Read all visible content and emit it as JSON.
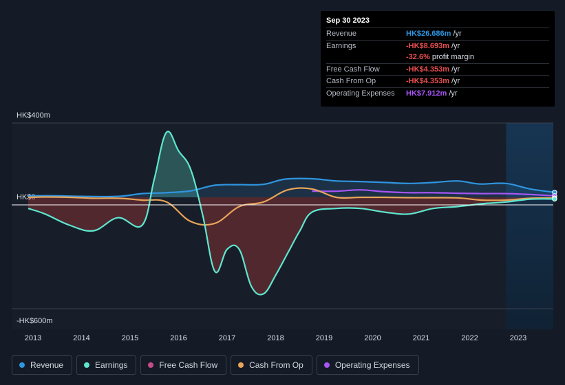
{
  "tooltip": {
    "date": "Sep 30 2023",
    "rows": [
      {
        "label": "Revenue",
        "value": "HK$26.686m",
        "suffix": "/yr",
        "color": "#2f95e0"
      },
      {
        "label": "Earnings",
        "value": "-HK$8.693m",
        "suffix": "/yr",
        "color": "#e94e4e"
      },
      {
        "label": "",
        "value": "-32.6%",
        "suffix": "profit margin",
        "color": "#e94e4e"
      },
      {
        "label": "Free Cash Flow",
        "value": "-HK$4.353m",
        "suffix": "/yr",
        "color": "#e94e4e"
      },
      {
        "label": "Cash From Op",
        "value": "-HK$4.353m",
        "suffix": "/yr",
        "color": "#e94e4e"
      },
      {
        "label": "Operating Expenses",
        "value": "HK$7.912m",
        "suffix": "/yr",
        "color": "#a855f7"
      }
    ]
  },
  "legend": [
    {
      "label": "Revenue",
      "color": "#2f95e0"
    },
    {
      "label": "Earnings",
      "color": "#5ee6cf"
    },
    {
      "label": "Free Cash Flow",
      "color": "#c74b8a"
    },
    {
      "label": "Cash From Op",
      "color": "#e8a55a"
    },
    {
      "label": "Operating Expenses",
      "color": "#a855f7"
    }
  ],
  "chart_data": {
    "type": "line",
    "y_top_label": "HK$400m",
    "y_zero_label": "HK$0",
    "y_bottom_label": "-HK$600m",
    "ylim": [
      -600,
      400
    ],
    "xlim": [
      2012.9,
      2023.75
    ],
    "forecast_start": 2022.75,
    "x_ticks": [
      "2013",
      "2014",
      "2015",
      "2016",
      "2017",
      "2018",
      "2019",
      "2020",
      "2021",
      "2022",
      "2023"
    ],
    "series": [
      {
        "name": "Revenue",
        "color": "#2f95e0",
        "x": [
          2012.9,
          2013.5,
          2014.0,
          2014.75,
          2015.25,
          2015.75,
          2016.25,
          2016.75,
          2017.25,
          2017.75,
          2018.2,
          2018.75,
          2019.25,
          2019.75,
          2020.25,
          2020.75,
          2021.25,
          2021.75,
          2022.2,
          2022.75,
          2023.25,
          2023.75
        ],
        "y": [
          8,
          8,
          5,
          5,
          20,
          25,
          35,
          65,
          68,
          70,
          98,
          100,
          88,
          85,
          80,
          75,
          80,
          88,
          72,
          75,
          45,
          27
        ]
      },
      {
        "name": "Earnings",
        "color": "#5ee6cf",
        "x": [
          2012.9,
          2013.25,
          2013.75,
          2014.25,
          2014.75,
          2015.25,
          2015.5,
          2015.75,
          2016.0,
          2016.25,
          2016.5,
          2016.75,
          2017.0,
          2017.25,
          2017.5,
          2017.75,
          2018.0,
          2018.25,
          2018.5,
          2018.75,
          2019.25,
          2019.75,
          2020.25,
          2020.75,
          2021.25,
          2021.75,
          2022.25,
          2022.75,
          2023.25,
          2023.75
        ],
        "y": [
          -60,
          -90,
          -150,
          -180,
          -110,
          -150,
          100,
          350,
          250,
          150,
          -100,
          -400,
          -280,
          -280,
          -480,
          -520,
          -420,
          -300,
          -180,
          -80,
          -60,
          -60,
          -80,
          -90,
          -60,
          -50,
          -35,
          -25,
          -10,
          -9
        ]
      },
      {
        "name": "Cash From Op",
        "color": "#e8a55a",
        "x": [
          2012.9,
          2013.25,
          2013.75,
          2014.25,
          2014.75,
          2015.25,
          2015.75,
          2016.25,
          2016.75,
          2017.25,
          2017.75,
          2018.25,
          2018.75,
          2019.25,
          2019.75,
          2020.25,
          2020.75,
          2021.25,
          2021.75,
          2022.25,
          2022.75,
          2023.25,
          2023.75
        ],
        "y": [
          0,
          2,
          0,
          -5,
          -5,
          -15,
          -25,
          -130,
          -140,
          -50,
          -25,
          40,
          45,
          0,
          0,
          0,
          -2,
          -2,
          -3,
          -15,
          -15,
          -5,
          -4
        ]
      },
      {
        "name": "Operating Expenses",
        "color": "#a855f7",
        "x": [
          2018.75,
          2019.25,
          2019.75,
          2020.25,
          2020.75,
          2021.25,
          2021.75,
          2022.25,
          2022.75,
          2023.25,
          2023.75
        ],
        "y": [
          33,
          33,
          40,
          30,
          25,
          25,
          22,
          20,
          20,
          15,
          8
        ]
      }
    ]
  }
}
